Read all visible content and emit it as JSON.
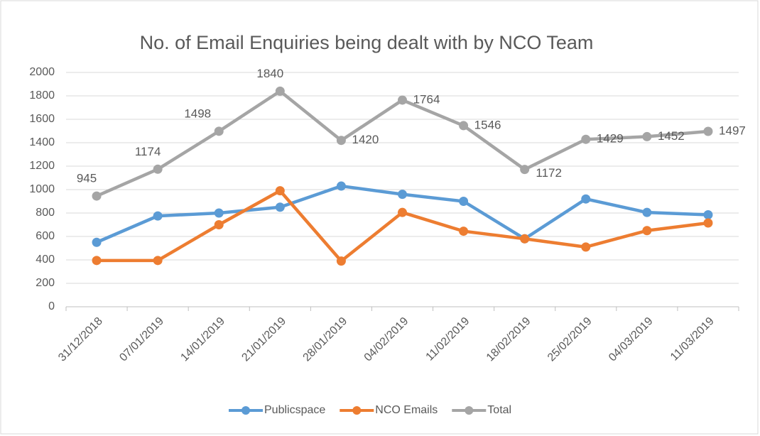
{
  "chart_data": {
    "type": "line",
    "title": "No. of Email Enquiries being dealt with by NCO Team",
    "categories": [
      "31/12/2018",
      "07/01/2019",
      "14/01/2019",
      "21/01/2019",
      "28/01/2019",
      "04/02/2019",
      "11/02/2019",
      "18/02/2019",
      "25/02/2019",
      "04/03/2019",
      "11/03/2019"
    ],
    "series": [
      {
        "name": "Publicspace",
        "color": "#5b9bd5",
        "values": [
          550,
          775,
          800,
          850,
          1030,
          960,
          900,
          580,
          920,
          805,
          785
        ]
      },
      {
        "name": "NCO Emails",
        "color": "#ed7d31",
        "values": [
          395,
          395,
          700,
          990,
          390,
          805,
          645,
          580,
          510,
          650,
          715
        ]
      },
      {
        "name": "Total",
        "color": "#a5a5a5",
        "values": [
          945,
          1174,
          1498,
          1840,
          1420,
          1764,
          1546,
          1172,
          1429,
          1452,
          1497
        ],
        "data_labels": true
      }
    ],
    "ylim": [
      0,
      2000
    ],
    "yticks": [
      0,
      200,
      400,
      600,
      800,
      1000,
      1200,
      1400,
      1600,
      1800,
      2000
    ],
    "grid": true,
    "legend": "bottom"
  }
}
